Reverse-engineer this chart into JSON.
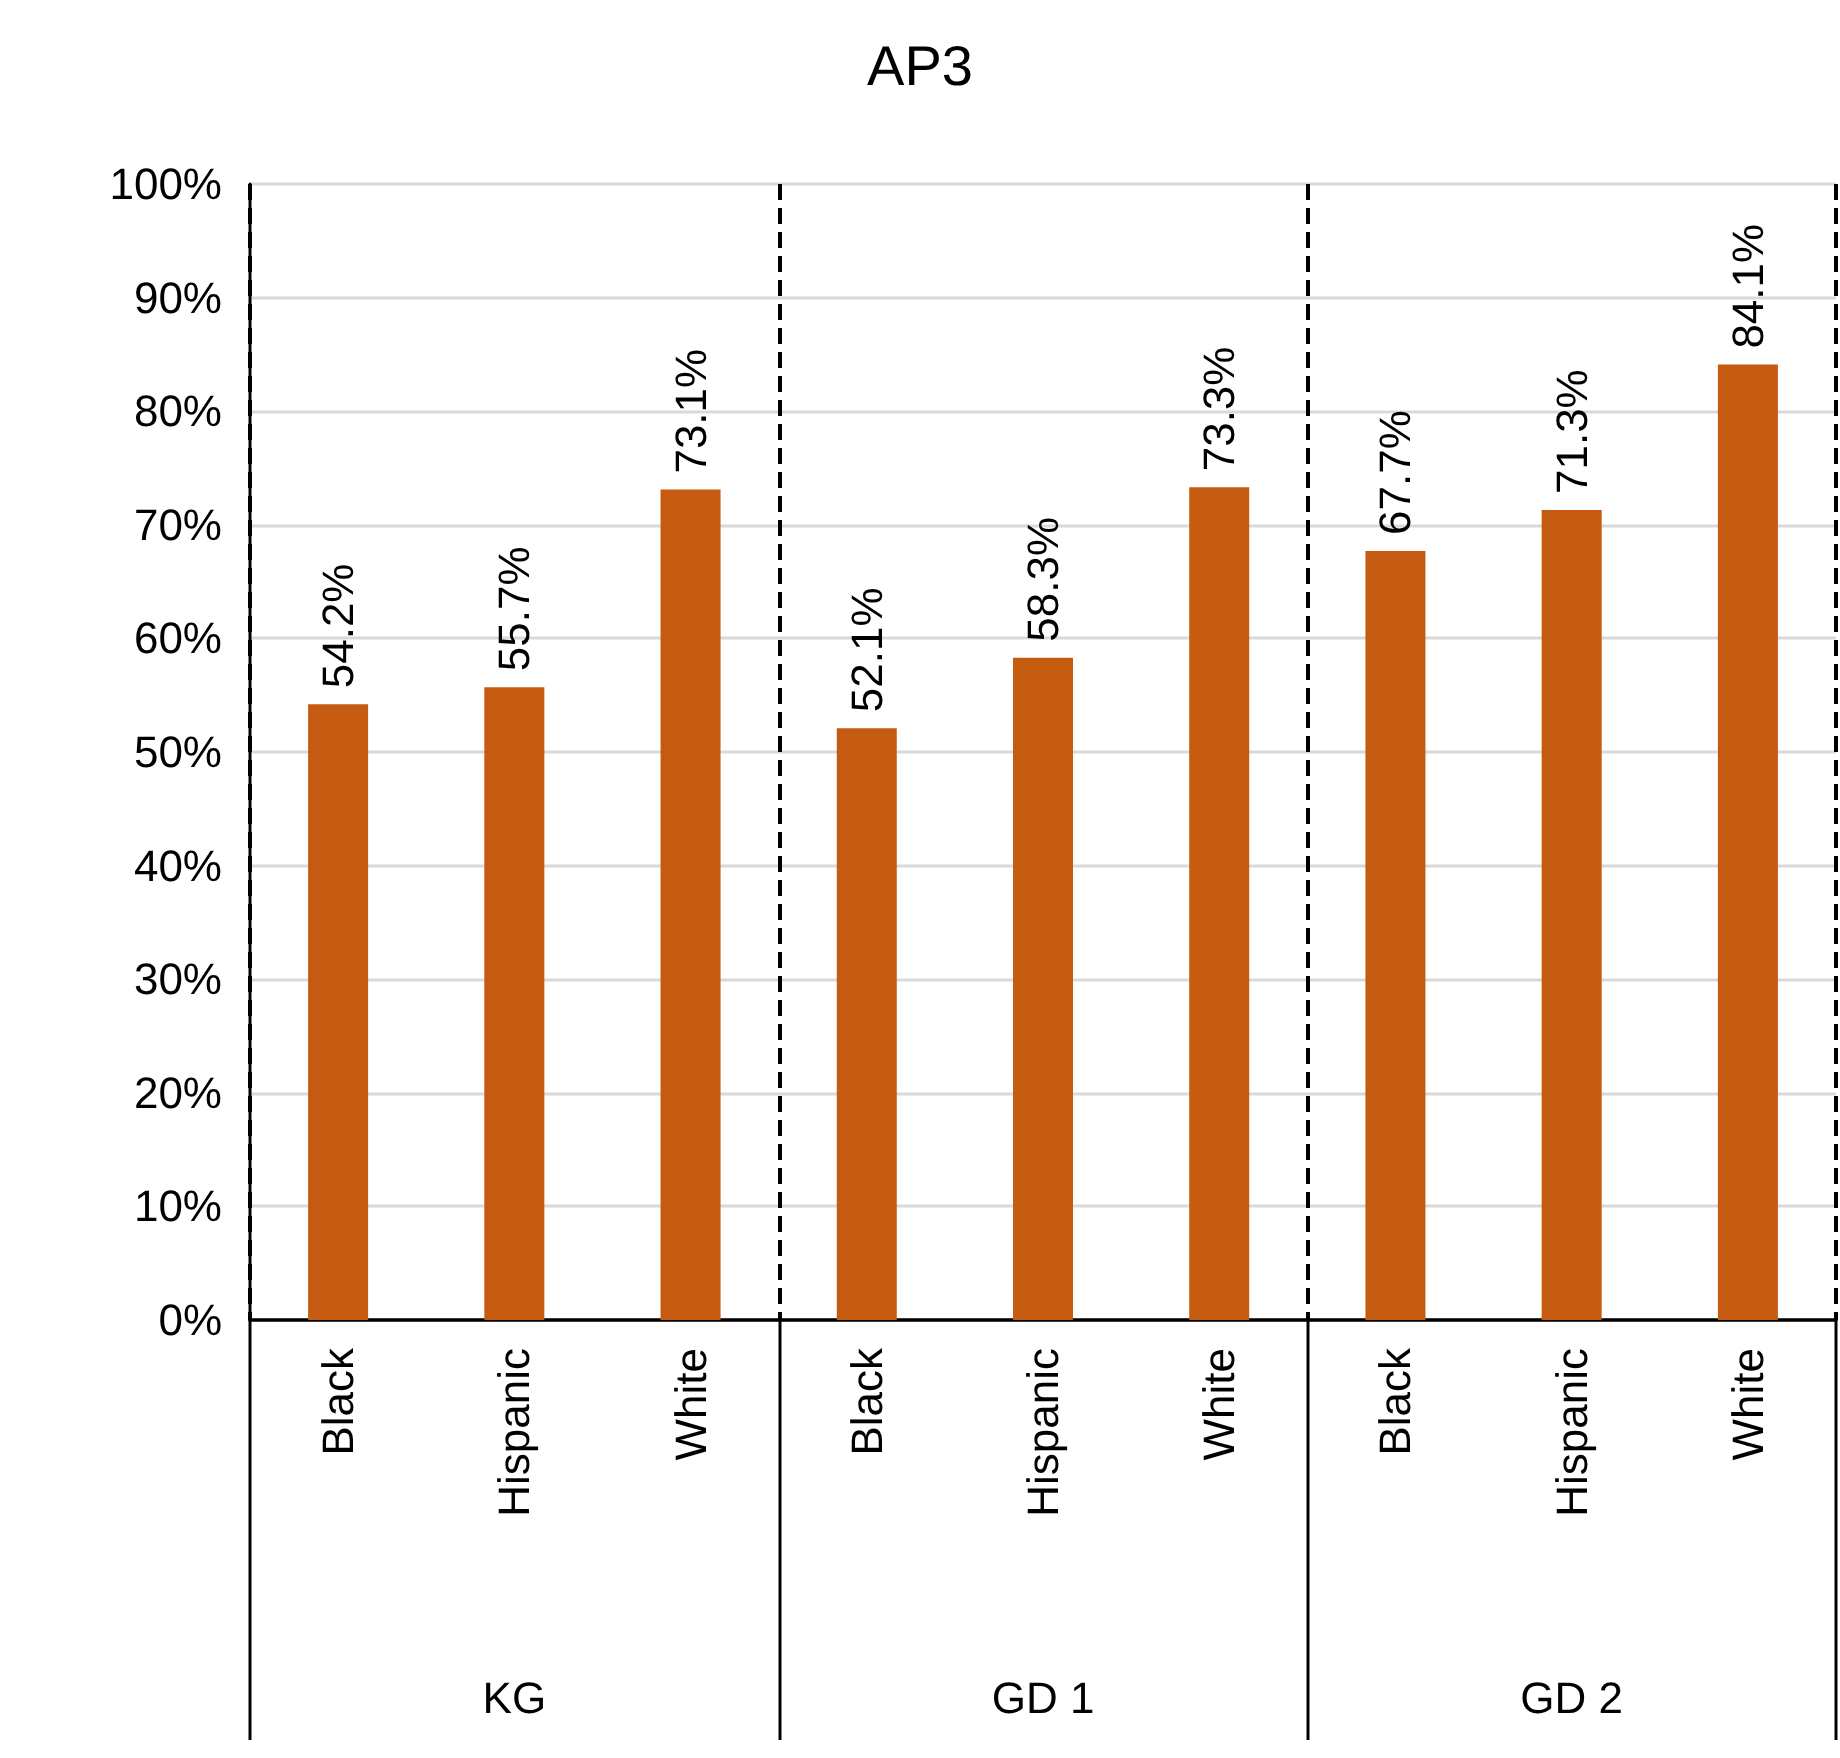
{
  "chart_data": {
    "type": "bar",
    "title": "AP3",
    "categories": [
      "Black",
      "Hispanic",
      "White",
      "Black",
      "Hispanic",
      "White",
      "Black",
      "Hispanic",
      "White"
    ],
    "values": [
      54.2,
      55.7,
      73.1,
      52.1,
      58.3,
      73.3,
      67.7,
      71.3,
      84.1
    ],
    "value_labels": [
      "54.2%",
      "55.7%",
      "73.1%",
      "52.1%",
      "58.3%",
      "73.3%",
      "67.7%",
      "71.3%",
      "84.1%"
    ],
    "color": "#c55a11",
    "annotations": [
      "KG",
      "GD 1",
      "GD 2"
    ],
    "ylim": [
      0,
      100
    ],
    "yticks": [
      {
        "value": 0,
        "label": "0%"
      },
      {
        "value": 10,
        "label": "10%"
      },
      {
        "value": 20,
        "label": "20%"
      },
      {
        "value": 30,
        "label": "30%"
      },
      {
        "value": 40,
        "label": "40%"
      },
      {
        "value": 50,
        "label": "50%"
      },
      {
        "value": 60,
        "label": "60%"
      },
      {
        "value": 70,
        "label": "70%"
      },
      {
        "value": 80,
        "label": "80%"
      },
      {
        "value": 90,
        "label": "90%"
      },
      {
        "value": 100,
        "label": "100%"
      }
    ],
    "grid": "y"
  }
}
